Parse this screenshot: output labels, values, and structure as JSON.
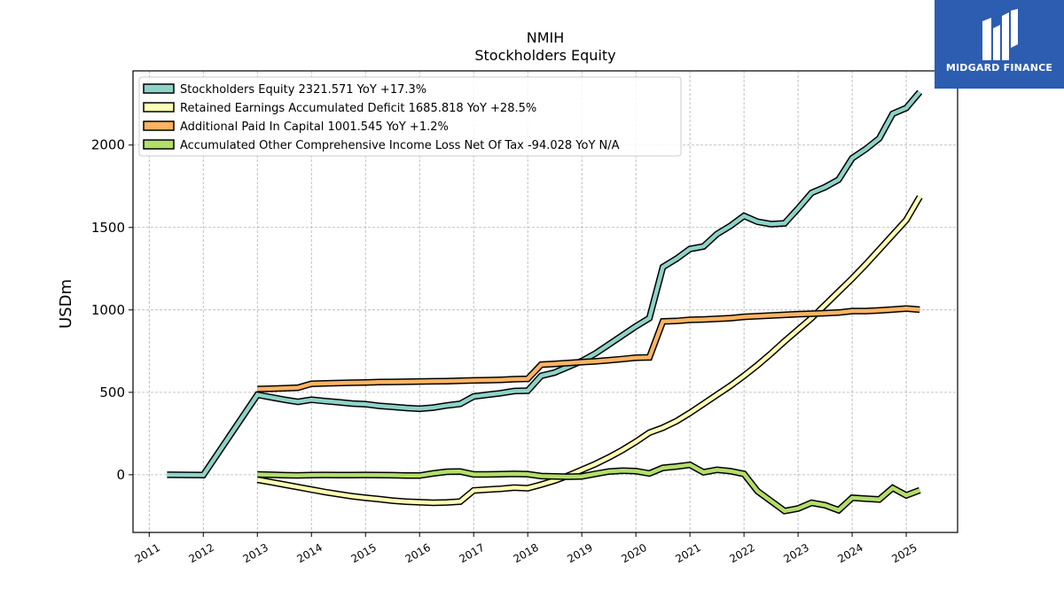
{
  "logo": {
    "text": "MIDGARD FINANCE",
    "background": "#2d5db0"
  },
  "chart_data": {
    "type": "line",
    "title": "NMIH",
    "subtitle": "Stockholders  Equity",
    "xlabel": "",
    "ylabel": "USDm",
    "xlim": [
      2010.7,
      2025.95
    ],
    "ylim": [
      -350,
      2450
    ],
    "x_ticks": [
      "2011",
      "2012",
      "2013",
      "2014",
      "2015",
      "2016",
      "2017",
      "2018",
      "2019",
      "2020",
      "2021",
      "2022",
      "2023",
      "2024",
      "2025"
    ],
    "y_ticks": [
      0,
      500,
      1000,
      1500,
      2000
    ],
    "grid": true,
    "legend_position": "top-left",
    "series": [
      {
        "name": "Stockholders Equity  2321.571 YoY +17.3%",
        "color": "#8dd3c7",
        "x": [
          2011.33,
          2012.0,
          2013.0,
          2013.25,
          2013.5,
          2013.75,
          2014.0,
          2014.25,
          2014.5,
          2014.75,
          2015.0,
          2015.25,
          2015.5,
          2015.75,
          2016.0,
          2016.25,
          2016.5,
          2016.75,
          2017.0,
          2017.25,
          2017.5,
          2017.75,
          2018.0,
          2018.25,
          2018.5,
          2018.75,
          2019.0,
          2019.25,
          2019.5,
          2019.75,
          2020.0,
          2020.25,
          2020.5,
          2020.75,
          2021.0,
          2021.25,
          2021.5,
          2021.75,
          2022.0,
          2022.25,
          2022.5,
          2022.75,
          2023.0,
          2023.25,
          2023.5,
          2023.75,
          2024.0,
          2024.25,
          2024.5,
          2024.75,
          2025.0,
          2025.25
        ],
        "values": [
          0,
          -2,
          485,
          470,
          455,
          442,
          455,
          447,
          440,
          432,
          428,
          418,
          412,
          405,
          400,
          407,
          420,
          430,
          475,
          485,
          495,
          508,
          510,
          600,
          620,
          655,
          690,
          735,
          790,
          845,
          900,
          950,
          1260,
          1310,
          1370,
          1385,
          1460,
          1510,
          1570,
          1535,
          1520,
          1525,
          1615,
          1710,
          1745,
          1790,
          1920,
          1975,
          2040,
          2190,
          2225,
          2321.571
        ]
      },
      {
        "name": "Retained Earnings Accumulated Deficit  1685.818 YoY +28.5%",
        "color": "#ffffb3",
        "x": [
          2013.0,
          2013.25,
          2013.5,
          2013.75,
          2014.0,
          2014.25,
          2014.5,
          2014.75,
          2015.0,
          2015.25,
          2015.5,
          2015.75,
          2016.0,
          2016.25,
          2016.5,
          2016.75,
          2017.0,
          2017.25,
          2017.5,
          2017.75,
          2018.0,
          2018.25,
          2018.5,
          2018.75,
          2019.0,
          2019.25,
          2019.5,
          2019.75,
          2020.0,
          2020.25,
          2020.5,
          2020.75,
          2021.0,
          2021.25,
          2021.5,
          2021.75,
          2022.0,
          2022.25,
          2022.5,
          2022.75,
          2023.0,
          2023.25,
          2023.5,
          2023.75,
          2024.0,
          2024.25,
          2024.5,
          2024.75,
          2025.0,
          2025.25
        ],
        "values": [
          -30,
          -45,
          -60,
          -75,
          -90,
          -105,
          -118,
          -130,
          -140,
          -148,
          -157,
          -163,
          -167,
          -170,
          -168,
          -163,
          -95,
          -90,
          -85,
          -78,
          -82,
          -60,
          -35,
          -5,
          30,
          65,
          105,
          150,
          200,
          255,
          285,
          325,
          375,
          430,
          485,
          540,
          600,
          665,
          735,
          810,
          880,
          950,
          1030,
          1110,
          1190,
          1275,
          1365,
          1455,
          1545,
          1685.818
        ]
      },
      {
        "name": "Additional Paid In Capital  1001.545 YoY +1.2%",
        "color": "#fdb462",
        "x": [
          2013.0,
          2013.25,
          2013.5,
          2013.75,
          2014.0,
          2014.25,
          2014.5,
          2014.75,
          2015.0,
          2015.25,
          2015.5,
          2015.75,
          2016.0,
          2016.25,
          2016.5,
          2016.75,
          2017.0,
          2017.25,
          2017.5,
          2017.75,
          2018.0,
          2018.25,
          2018.5,
          2018.75,
          2019.0,
          2019.25,
          2019.5,
          2019.75,
          2020.0,
          2020.25,
          2020.5,
          2020.75,
          2021.0,
          2021.25,
          2021.5,
          2021.75,
          2022.0,
          2022.25,
          2022.5,
          2022.75,
          2023.0,
          2023.25,
          2023.5,
          2023.75,
          2024.0,
          2024.25,
          2024.5,
          2024.75,
          2025.0,
          2025.25
        ],
        "values": [
          520,
          522,
          525,
          528,
          552,
          554,
          556,
          558,
          560,
          562,
          563,
          564,
          566,
          567,
          568,
          570,
          572,
          574,
          576,
          580,
          582,
          668,
          672,
          678,
          683,
          688,
          695,
          702,
          710,
          712,
          930,
          933,
          940,
          942,
          946,
          950,
          958,
          962,
          966,
          970,
          974,
          977,
          980,
          984,
          993,
          993,
          997,
          1002,
          1008,
          1001.545
        ]
      },
      {
        "name": "Accumulated Other Comprehensive Income Loss Net Of Tax  -94.028 YoY N/A",
        "color": "#b3de69",
        "x": [
          2013.0,
          2013.25,
          2013.5,
          2013.75,
          2014.0,
          2014.25,
          2014.5,
          2014.75,
          2015.0,
          2015.25,
          2015.5,
          2015.75,
          2016.0,
          2016.25,
          2016.5,
          2016.75,
          2017.0,
          2017.25,
          2017.5,
          2017.75,
          2018.0,
          2018.25,
          2018.5,
          2018.75,
          2019.0,
          2019.25,
          2019.5,
          2019.75,
          2020.0,
          2020.25,
          2020.5,
          2020.75,
          2021.0,
          2021.25,
          2021.5,
          2021.75,
          2022.0,
          2022.25,
          2022.5,
          2022.75,
          2023.0,
          2023.25,
          2023.5,
          2023.75,
          2024.0,
          2024.25,
          2024.5,
          2024.75,
          2025.0,
          2025.25
        ],
        "values": [
          2,
          0,
          -3,
          -4,
          -2,
          -1,
          -2,
          -2,
          -1,
          -2,
          -3,
          -5,
          -5,
          8,
          18,
          20,
          2,
          2,
          3,
          5,
          3,
          -8,
          -10,
          -12,
          -10,
          5,
          20,
          25,
          22,
          8,
          42,
          50,
          60,
          15,
          30,
          22,
          5,
          -100,
          -160,
          -220,
          -205,
          -170,
          -185,
          -215,
          -140,
          -145,
          -150,
          -80,
          -125,
          -94.028
        ]
      }
    ]
  }
}
